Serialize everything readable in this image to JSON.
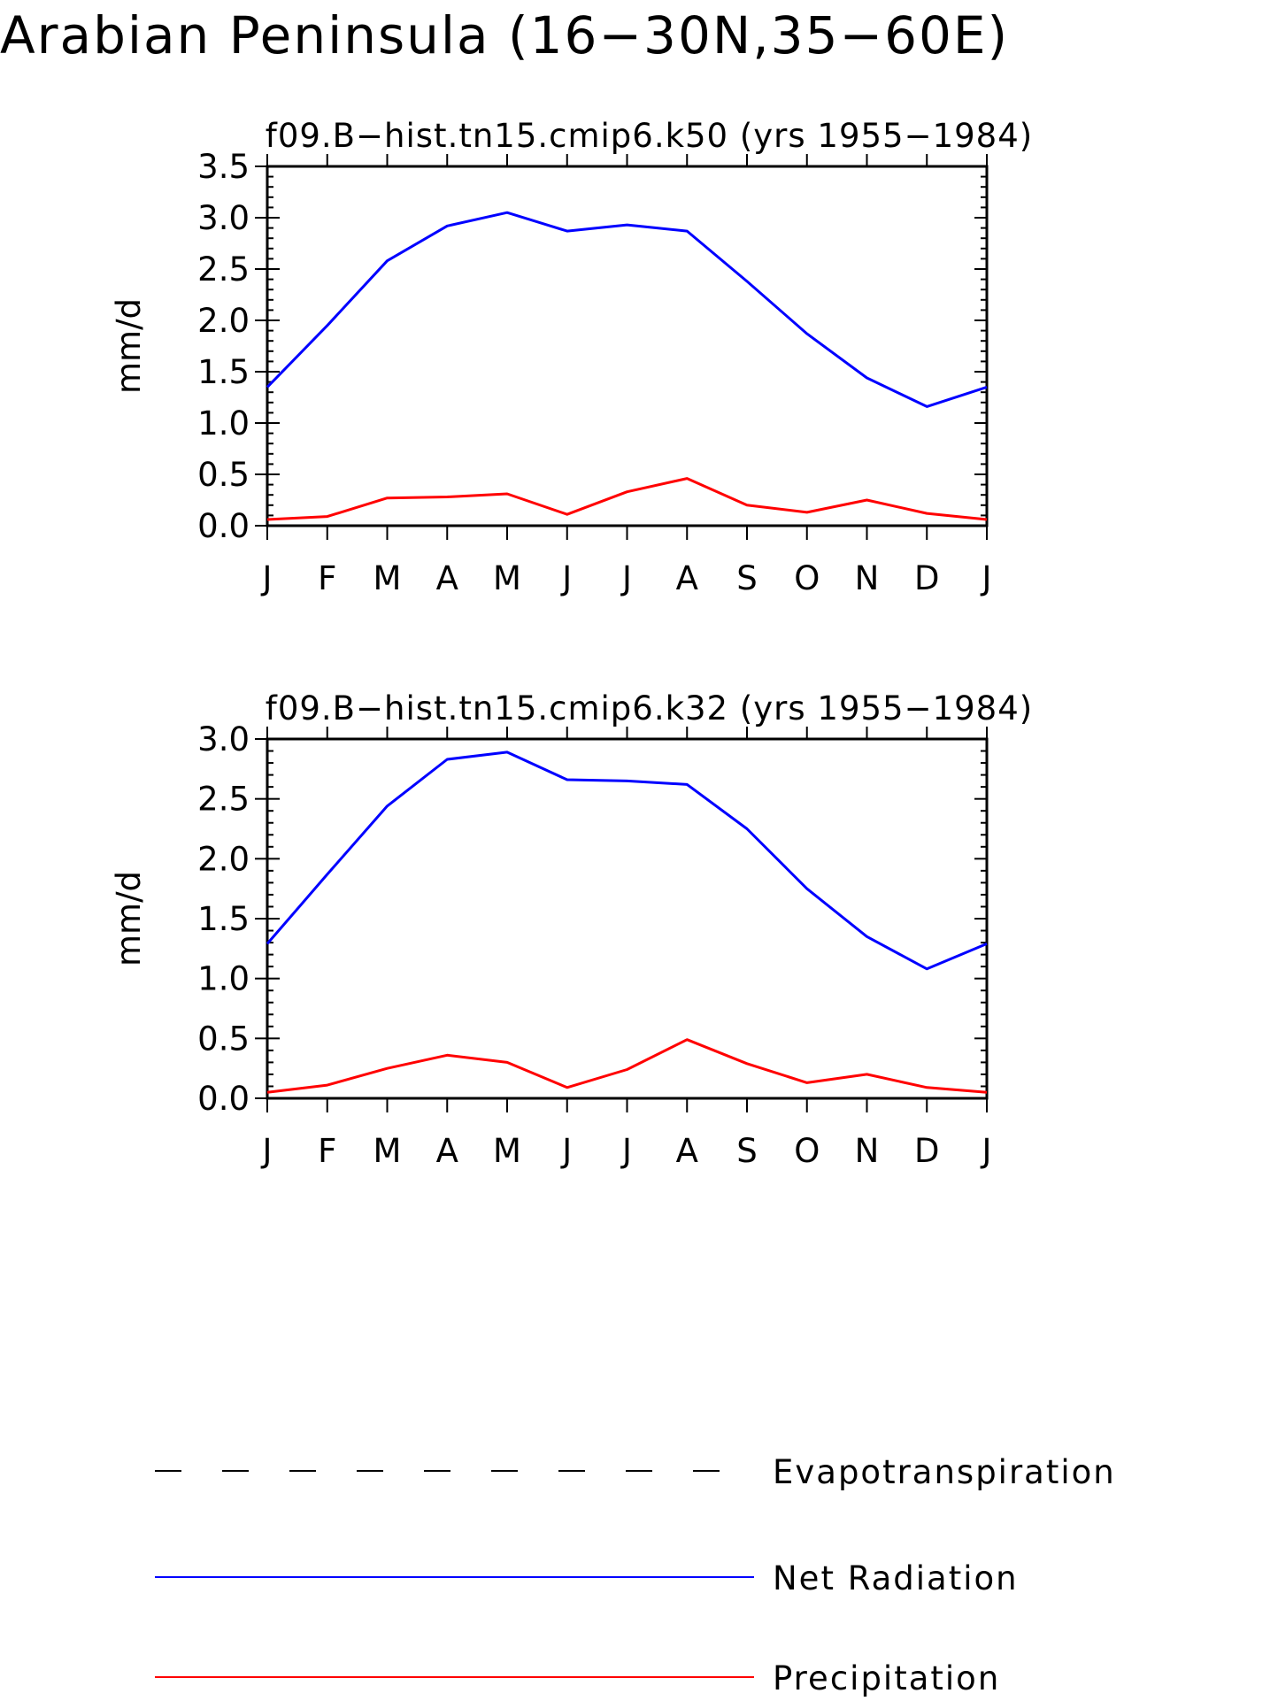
{
  "figure": {
    "title": "Arabian Peninsula (16−30N,35−60E)"
  },
  "chart_data": [
    {
      "type": "line",
      "title": "f09.B−hist.tn15.cmip6.k50 (yrs 1955−1984)",
      "ylabel": "mm/d",
      "xlabel": "",
      "categories": [
        "J",
        "F",
        "M",
        "A",
        "M",
        "J",
        "J",
        "A",
        "S",
        "O",
        "N",
        "D",
        "J"
      ],
      "ylim": [
        0,
        3.5
      ],
      "yticks": [
        "0.0",
        "0.5",
        "1.0",
        "1.5",
        "2.0",
        "2.5",
        "3.0",
        "3.5"
      ],
      "grid": false,
      "series": [
        {
          "name": "Net Radiation",
          "color": "#0000ff",
          "values": [
            1.35,
            1.95,
            2.58,
            2.92,
            3.05,
            2.87,
            2.93,
            2.87,
            2.38,
            1.87,
            1.44,
            1.16,
            1.35
          ]
        },
        {
          "name": "Precipitation",
          "color": "#ff0000",
          "values": [
            0.06,
            0.09,
            0.27,
            0.28,
            0.31,
            0.11,
            0.33,
            0.46,
            0.2,
            0.13,
            0.25,
            0.12,
            0.06
          ]
        }
      ]
    },
    {
      "type": "line",
      "title": "f09.B−hist.tn15.cmip6.k32 (yrs 1955−1984)",
      "ylabel": "mm/d",
      "xlabel": "",
      "categories": [
        "J",
        "F",
        "M",
        "A",
        "M",
        "J",
        "J",
        "A",
        "S",
        "O",
        "N",
        "D",
        "J"
      ],
      "ylim": [
        0,
        3.0
      ],
      "yticks": [
        "0.0",
        "0.5",
        "1.0",
        "1.5",
        "2.0",
        "2.5",
        "3.0"
      ],
      "grid": false,
      "series": [
        {
          "name": "Net Radiation",
          "color": "#0000ff",
          "values": [
            1.29,
            1.87,
            2.44,
            2.83,
            2.89,
            2.66,
            2.65,
            2.62,
            2.25,
            1.75,
            1.35,
            1.08,
            1.29
          ]
        },
        {
          "name": "Precipitation",
          "color": "#ff0000",
          "values": [
            0.05,
            0.11,
            0.25,
            0.36,
            0.3,
            0.09,
            0.24,
            0.49,
            0.29,
            0.13,
            0.2,
            0.09,
            0.05
          ]
        }
      ]
    }
  ],
  "legend": {
    "placement": "bottom",
    "items": [
      {
        "label": "Evapotranspiration",
        "color": "#000000",
        "style": "dashed"
      },
      {
        "label": "Net Radiation",
        "color": "#0000ff",
        "style": "solid"
      },
      {
        "label": "Precipitation",
        "color": "#ff0000",
        "style": "solid"
      }
    ]
  }
}
